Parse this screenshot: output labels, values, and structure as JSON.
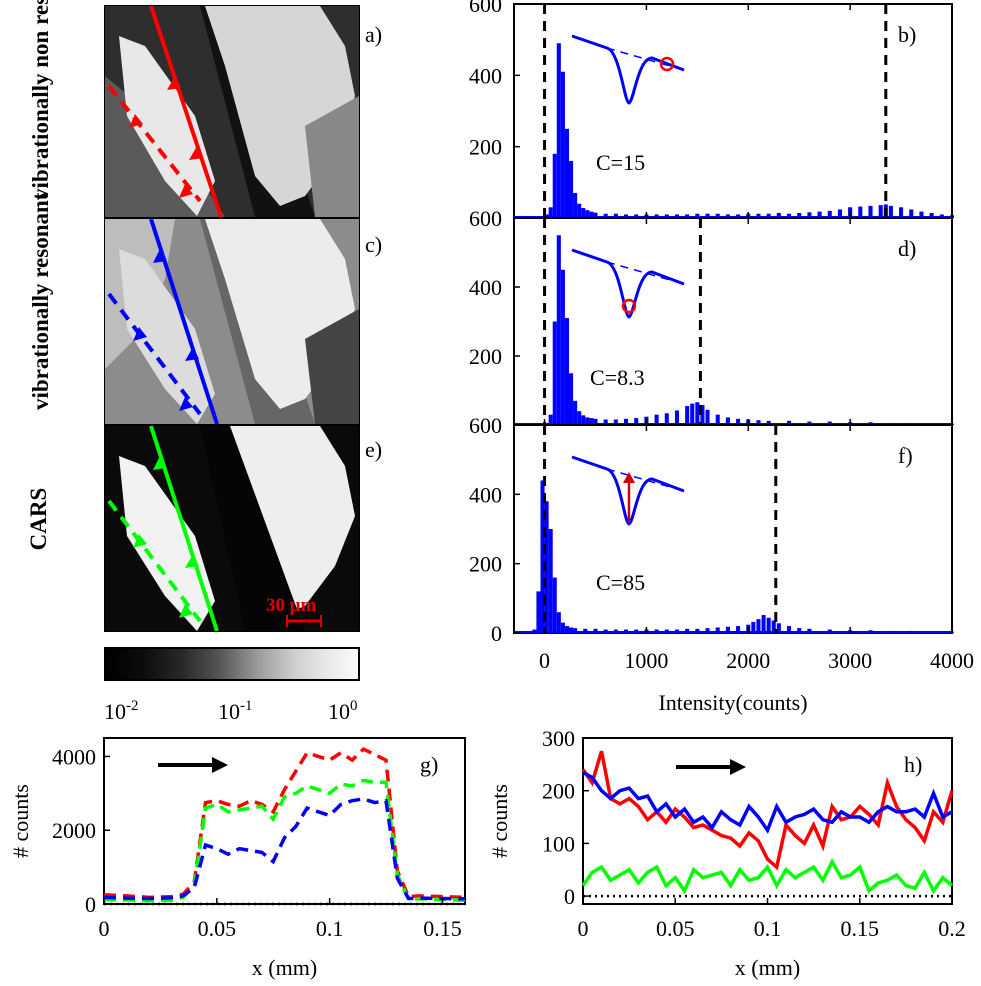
{
  "row_labels": {
    "a": "vibrationally non resonant",
    "c": "vibrationally resonant",
    "e": "CARS"
  },
  "panel_letters": [
    "a)",
    "b)",
    "c)",
    "d)",
    "e)",
    "f)",
    "g)",
    "h)"
  ],
  "colorbar": {
    "ticks": [
      "10",
      "10",
      "10"
    ],
    "exponents": [
      "-2",
      "-1",
      "0"
    ]
  },
  "scale_bar": "30 μm",
  "line_colors": {
    "red": "#ff0000",
    "blue": "#0000ff",
    "green": "#00ff00"
  },
  "chart_data": [
    {
      "type": "bar",
      "panel": "b)",
      "annotation": "C=15",
      "color": "#0000ff",
      "xlim": [
        -300,
        4000
      ],
      "ylim": [
        0,
        600
      ],
      "yticks": [
        200,
        400,
        600
      ],
      "xticks": [
        0,
        1000,
        2000,
        3000,
        4000
      ],
      "vlines": [
        0,
        3350
      ],
      "bin_width": 40,
      "x": [
        -20,
        20,
        60,
        100,
        140,
        180,
        220,
        260,
        300,
        340,
        380,
        420,
        460,
        500,
        600,
        700,
        800,
        900,
        1000,
        1100,
        1200,
        1300,
        1400,
        1500,
        1600,
        1700,
        1800,
        1900,
        2000,
        2100,
        2200,
        2300,
        2400,
        2500,
        2600,
        2700,
        2800,
        2900,
        3000,
        3100,
        3200,
        3300,
        3350,
        3400,
        3500,
        3600,
        3700,
        3800,
        3900,
        4000
      ],
      "values": [
        2,
        10,
        30,
        180,
        490,
        410,
        250,
        160,
        70,
        40,
        28,
        22,
        18,
        15,
        12,
        12,
        10,
        10,
        10,
        10,
        10,
        10,
        10,
        12,
        12,
        12,
        10,
        10,
        12,
        12,
        12,
        14,
        12,
        14,
        16,
        18,
        20,
        24,
        30,
        32,
        34,
        36,
        38,
        34,
        30,
        24,
        18,
        14,
        10,
        8
      ]
    },
    {
      "type": "bar",
      "panel": "d)",
      "annotation": "C=8.3",
      "color": "#0000ff",
      "xlim": [
        -300,
        4000
      ],
      "ylim": [
        0,
        600
      ],
      "yticks": [
        200,
        400,
        600
      ],
      "xticks": [
        0,
        1000,
        2000,
        3000,
        4000
      ],
      "vlines": [
        0,
        1530
      ],
      "bin_width": 40,
      "x": [
        20,
        60,
        100,
        140,
        180,
        220,
        260,
        300,
        340,
        380,
        420,
        460,
        500,
        600,
        700,
        800,
        900,
        1000,
        1100,
        1200,
        1300,
        1400,
        1450,
        1500,
        1550,
        1600,
        1700,
        1800,
        1900,
        2000,
        2100,
        2200,
        2400,
        2600,
        2800,
        3000,
        3200,
        3400,
        3600,
        3800,
        4000
      ],
      "values": [
        5,
        30,
        300,
        550,
        450,
        310,
        150,
        70,
        40,
        28,
        22,
        20,
        18,
        16,
        16,
        18,
        20,
        24,
        30,
        34,
        42,
        55,
        62,
        66,
        58,
        44,
        30,
        22,
        18,
        16,
        14,
        12,
        12,
        10,
        10,
        8,
        8,
        6,
        6,
        5,
        4
      ]
    },
    {
      "type": "bar",
      "panel": "f)",
      "annotation": "C=85",
      "color": "#0000ff",
      "xlim": [
        -300,
        4000
      ],
      "ylim": [
        0,
        600
      ],
      "yticks": [
        0,
        200,
        400,
        600
      ],
      "xticks": [
        0,
        1000,
        2000,
        3000,
        4000
      ],
      "vlines": [
        0,
        2270
      ],
      "bin_width": 40,
      "x": [
        -100,
        -60,
        -20,
        20,
        60,
        100,
        140,
        180,
        220,
        260,
        300,
        400,
        500,
        600,
        700,
        800,
        900,
        1000,
        1100,
        1200,
        1300,
        1400,
        1500,
        1600,
        1700,
        1800,
        1900,
        2000,
        2050,
        2100,
        2150,
        2200,
        2250,
        2300,
        2400,
        2500,
        2600,
        2800,
        3000,
        3200,
        3400,
        3600,
        3800,
        4000
      ],
      "values": [
        10,
        120,
        440,
        380,
        300,
        160,
        60,
        30,
        20,
        16,
        14,
        12,
        12,
        10,
        10,
        10,
        10,
        10,
        10,
        10,
        10,
        12,
        12,
        14,
        16,
        18,
        20,
        24,
        32,
        40,
        52,
        44,
        36,
        28,
        20,
        14,
        12,
        10,
        8,
        8,
        6,
        6,
        5,
        4
      ]
    },
    {
      "type": "line",
      "panel": "g)",
      "xlabel": "x (mm)",
      "ylabel": "# counts",
      "xlim": [
        0,
        0.16
      ],
      "ylim": [
        0,
        4500
      ],
      "xticks": [
        0,
        0.05,
        0.1,
        0.15
      ],
      "yticks": [
        0,
        2000,
        4000
      ],
      "x": [
        0,
        0.01,
        0.02,
        0.03,
        0.035,
        0.04,
        0.045,
        0.05,
        0.055,
        0.06,
        0.065,
        0.07,
        0.075,
        0.08,
        0.085,
        0.09,
        0.095,
        0.1,
        0.105,
        0.11,
        0.115,
        0.12,
        0.125,
        0.13,
        0.135,
        0.14,
        0.15,
        0.16
      ],
      "series": [
        {
          "color": "red",
          "dashed": true,
          "values": [
            250,
            220,
            180,
            200,
            260,
            600,
            2750,
            2800,
            2700,
            2650,
            2800,
            2700,
            2500,
            3100,
            3600,
            4100,
            4000,
            3900,
            4100,
            3900,
            4200,
            4050,
            3900,
            900,
            200,
            220,
            200,
            180
          ]
        },
        {
          "color": "green",
          "dashed": true,
          "values": [
            120,
            110,
            90,
            100,
            180,
            500,
            2600,
            2700,
            2500,
            2550,
            2600,
            2650,
            2300,
            2900,
            3000,
            3200,
            3100,
            3000,
            3250,
            3200,
            3350,
            3300,
            3300,
            800,
            120,
            140,
            120,
            100
          ]
        },
        {
          "color": "blue",
          "dashed": true,
          "values": [
            180,
            160,
            150,
            170,
            220,
            450,
            1600,
            1500,
            1350,
            1500,
            1450,
            1400,
            1150,
            1800,
            2100,
            2600,
            2500,
            2400,
            2700,
            2800,
            2850,
            2750,
            2800,
            700,
            150,
            160,
            150,
            140
          ]
        }
      ],
      "hline": 0,
      "arrow": "right"
    },
    {
      "type": "line",
      "panel": "h)",
      "xlabel": "x (mm)",
      "ylabel": "# counts",
      "xlim": [
        0,
        0.2
      ],
      "ylim": [
        -15,
        300
      ],
      "xticks": [
        0,
        0.05,
        0.1,
        0.15,
        0.2
      ],
      "yticks": [
        0,
        100,
        200,
        300
      ],
      "x": [
        0,
        0.005,
        0.01,
        0.015,
        0.02,
        0.025,
        0.03,
        0.035,
        0.04,
        0.045,
        0.05,
        0.055,
        0.06,
        0.065,
        0.07,
        0.075,
        0.08,
        0.085,
        0.09,
        0.095,
        0.1,
        0.105,
        0.11,
        0.115,
        0.12,
        0.125,
        0.13,
        0.135,
        0.14,
        0.145,
        0.15,
        0.155,
        0.16,
        0.165,
        0.17,
        0.175,
        0.18,
        0.185,
        0.19,
        0.195,
        0.2
      ],
      "series": [
        {
          "color": "red",
          "dashed": false,
          "values": [
            240,
            215,
            275,
            185,
            175,
            185,
            170,
            145,
            160,
            140,
            165,
            150,
            130,
            135,
            125,
            115,
            110,
            95,
            120,
            105,
            70,
            55,
            135,
            115,
            100,
            135,
            95,
            170,
            145,
            150,
            170,
            155,
            135,
            215,
            170,
            145,
            130,
            105,
            160,
            140,
            200
          ]
        },
        {
          "color": "blue",
          "dashed": false,
          "values": [
            235,
            225,
            200,
            185,
            200,
            205,
            185,
            190,
            160,
            175,
            150,
            165,
            140,
            150,
            130,
            160,
            145,
            135,
            170,
            150,
            125,
            170,
            140,
            150,
            155,
            165,
            145,
            140,
            160,
            150,
            150,
            140,
            160,
            170,
            160,
            160,
            165,
            150,
            195,
            150,
            160
          ]
        },
        {
          "color": "green",
          "dashed": false,
          "values": [
            20,
            45,
            55,
            30,
            40,
            50,
            25,
            45,
            55,
            20,
            35,
            10,
            50,
            35,
            40,
            45,
            20,
            50,
            30,
            35,
            55,
            20,
            50,
            35,
            45,
            55,
            30,
            65,
            35,
            40,
            55,
            10,
            25,
            30,
            40,
            20,
            15,
            45,
            10,
            35,
            20
          ]
        }
      ],
      "hline": 0,
      "arrow": "right"
    }
  ]
}
